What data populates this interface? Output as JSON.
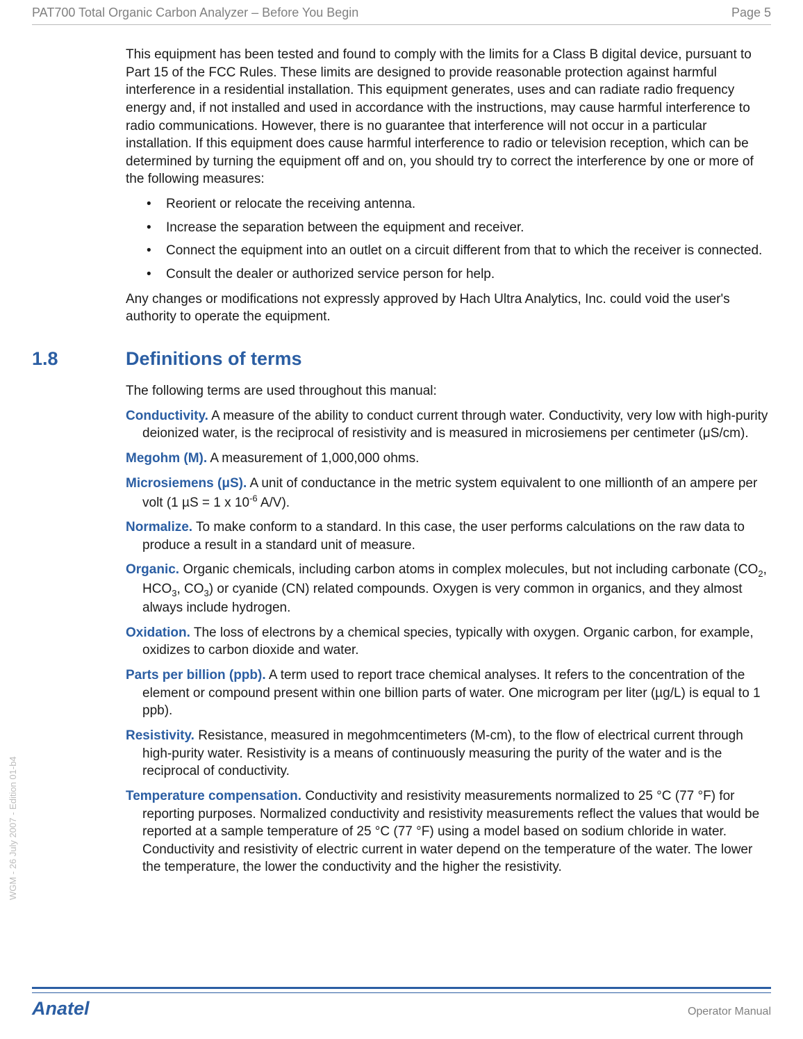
{
  "colors": {
    "header_text": "#808080",
    "body_text": "#1a1a1a",
    "accent_blue": "#2b5ea3",
    "rule_gray": "#b9b9b9",
    "side_gray": "#bcbcbc",
    "background": "#ffffff"
  },
  "typography": {
    "body_fontsize_pt": 14,
    "heading_fontsize_pt": 20,
    "footer_brand_fontsize_pt": 20
  },
  "header": {
    "left": "PAT700 Total Organic Carbon Analyzer – Before You Begin",
    "right": "Page 5"
  },
  "intro": {
    "para1": "This equipment has been tested and found to comply with the limits for a Class B digital device, pursuant to Part 15 of the FCC Rules. These limits are designed to provide reasonable protection against harmful interference in a residential installation. This equipment generates, uses and can radiate radio frequency energy and, if not installed and used in accordance with the instructions, may cause harmful interference to radio communications. However, there is no guarantee that interference will not occur in a particular installation. If this equipment does cause harmful interference to radio or television reception, which can be determined by turning the equipment off and on, you should try to correct the interference by one or more of the following measures:",
    "bullets": [
      "Reorient or relocate the receiving antenna.",
      "Increase the separation between the equipment and receiver.",
      "Connect the equipment into an outlet on a circuit different from that to which the receiver is connected.",
      "Consult the dealer or authorized service person for help."
    ],
    "para2": "Any changes or modifications not expressly approved by Hach Ultra Analytics, Inc. could void the user's authority to operate the equipment."
  },
  "section": {
    "number": "1.8",
    "title": "Definitions of terms",
    "lead": "The following terms are used throughout this manual:",
    "definitions": [
      {
        "term": "Conductivity.",
        "body": " A measure of the ability to conduct current through water. Conductivity, very low with high-purity deionized water, is the reciprocal of resistivity and is measured in microsiemens per centimeter (μS/cm)."
      },
      {
        "term": "Megohm (M).",
        "body": " A measurement of 1,000,000 ohms."
      },
      {
        "term": "Microsiemens (μS).",
        "body_html": " A unit of conductance in the metric system equivalent to one millionth of an ampere per volt (1 µS = 1 x 10<span class=\"sup\">-6</span> A/V)."
      },
      {
        "term": "Normalize.",
        "body": " To make conform to a standard. In this case, the user performs calculations on the raw data to produce a result in a standard unit of measure."
      },
      {
        "term": "Organic.",
        "body_html": " Organic chemicals, including carbon atoms in complex molecules, but not including carbonate (CO<span class=\"sub\">2</span>, HCO<span class=\"sub\">3</span>, CO<span class=\"sub\">3</span>) or cyanide (CN) related compounds. Oxygen is very common in organics, and they almost always include hydrogen."
      },
      {
        "term": "Oxidation.",
        "body": " The loss of electrons by a chemical species, typically with oxygen. Organic carbon, for example, oxidizes to carbon dioxide and water."
      },
      {
        "term": "Parts per billion (ppb).",
        "body": " A term used to report trace chemical analyses. It refers to the concentration of the element or compound present within one billion parts of water. One microgram per liter (µg/L) is equal to 1 ppb)."
      },
      {
        "term": "Resistivity.",
        "body": " Resistance, measured in megohmcentimeters (M-cm), to the flow of electrical current through high-purity water. Resistivity is a means of continuously measuring the purity of the water and is the reciprocal of conductivity."
      },
      {
        "term": "Temperature compensation.",
        "body": " Conductivity and resistivity measurements normalized to 25 °C (77 °F) for reporting purposes. Normalized conductivity and resistivity measurements reflect the values that would be reported at a sample temperature of 25 °C (77 °F) using a model based on sodium chloride in water. Conductivity and resistivity of electric current in water depend on the temperature of the water. The lower the temperature, the lower the conductivity and the higher the resistivity."
      }
    ]
  },
  "side_text": "WGM - 26 July 2007 - Edition 01-b4",
  "footer": {
    "left": "Anatel",
    "right": "Operator Manual"
  }
}
